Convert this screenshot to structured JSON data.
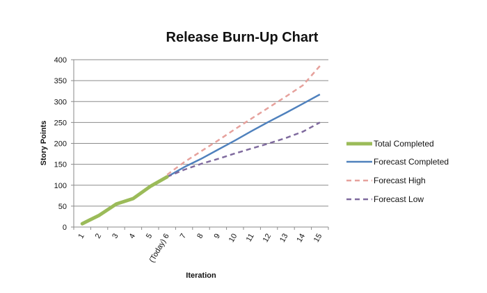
{
  "chart_data": {
    "type": "line",
    "title": "Release Burn-Up Chart",
    "xlabel": "Iteration",
    "ylabel": "Story Points",
    "categories": [
      "1",
      "2",
      "3",
      "4",
      "5",
      "(Today) 6",
      "7",
      "8",
      "9",
      "10",
      "11",
      "12",
      "13",
      "14",
      "15"
    ],
    "ylim": [
      0,
      400
    ],
    "yticks": [
      0,
      50,
      100,
      150,
      200,
      250,
      300,
      350,
      400
    ],
    "grid": true,
    "legend_position": "right",
    "series": [
      {
        "name": "Total Completed",
        "style": "solid",
        "color": "#9bbb59",
        "values": [
          8,
          28,
          55,
          68,
          97,
          120,
          null,
          null,
          null,
          null,
          null,
          null,
          null,
          null,
          null
        ]
      },
      {
        "name": "Forecast Completed",
        "style": "solid",
        "color": "#4f81bd",
        "values": [
          null,
          null,
          null,
          null,
          null,
          120,
          143,
          163,
          185,
          207,
          230,
          252,
          273,
          295,
          317
        ]
      },
      {
        "name": "Forecast High",
        "style": "dashed",
        "color": "#e6a19c",
        "values": [
          null,
          null,
          null,
          null,
          null,
          125,
          155,
          181,
          207,
          234,
          260,
          286,
          312,
          339,
          385
        ]
      },
      {
        "name": "Forecast Low",
        "style": "dashed",
        "color": "#7f6a9e",
        "values": [
          null,
          null,
          null,
          null,
          null,
          120,
          137,
          151,
          163,
          176,
          188,
          200,
          213,
          228,
          250
        ]
      }
    ]
  }
}
